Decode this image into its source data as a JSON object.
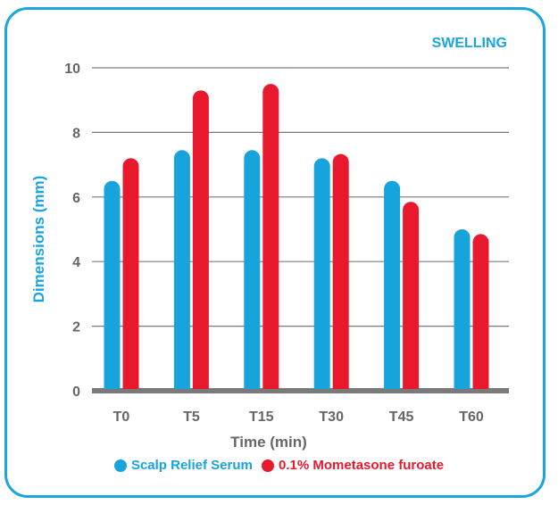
{
  "chart_data": {
    "type": "bar",
    "title": "SWELLING",
    "xlabel": "Time (min)",
    "ylabel": "Dimensions (mm)",
    "categories": [
      "T0",
      "T5",
      "T15",
      "T30",
      "T45",
      "T60"
    ],
    "ylim": [
      0,
      10
    ],
    "yticks": [
      0,
      2,
      4,
      6,
      8,
      10
    ],
    "grid": true,
    "legend_position": "bottom",
    "series": [
      {
        "name": "Scalp Relief Serum",
        "color": "#17a3dc",
        "values": [
          6.5,
          7.45,
          7.45,
          7.2,
          6.5,
          5.0
        ]
      },
      {
        "name": "0.1% Mometasone furoate",
        "color": "#e8192c",
        "values": [
          7.2,
          9.3,
          9.5,
          7.33,
          5.85,
          4.85
        ]
      }
    ]
  },
  "colors": {
    "border": "#1aa5dc",
    "text": "#666666",
    "grid": "#7a7a7a",
    "accent": "#1aa5dc"
  }
}
